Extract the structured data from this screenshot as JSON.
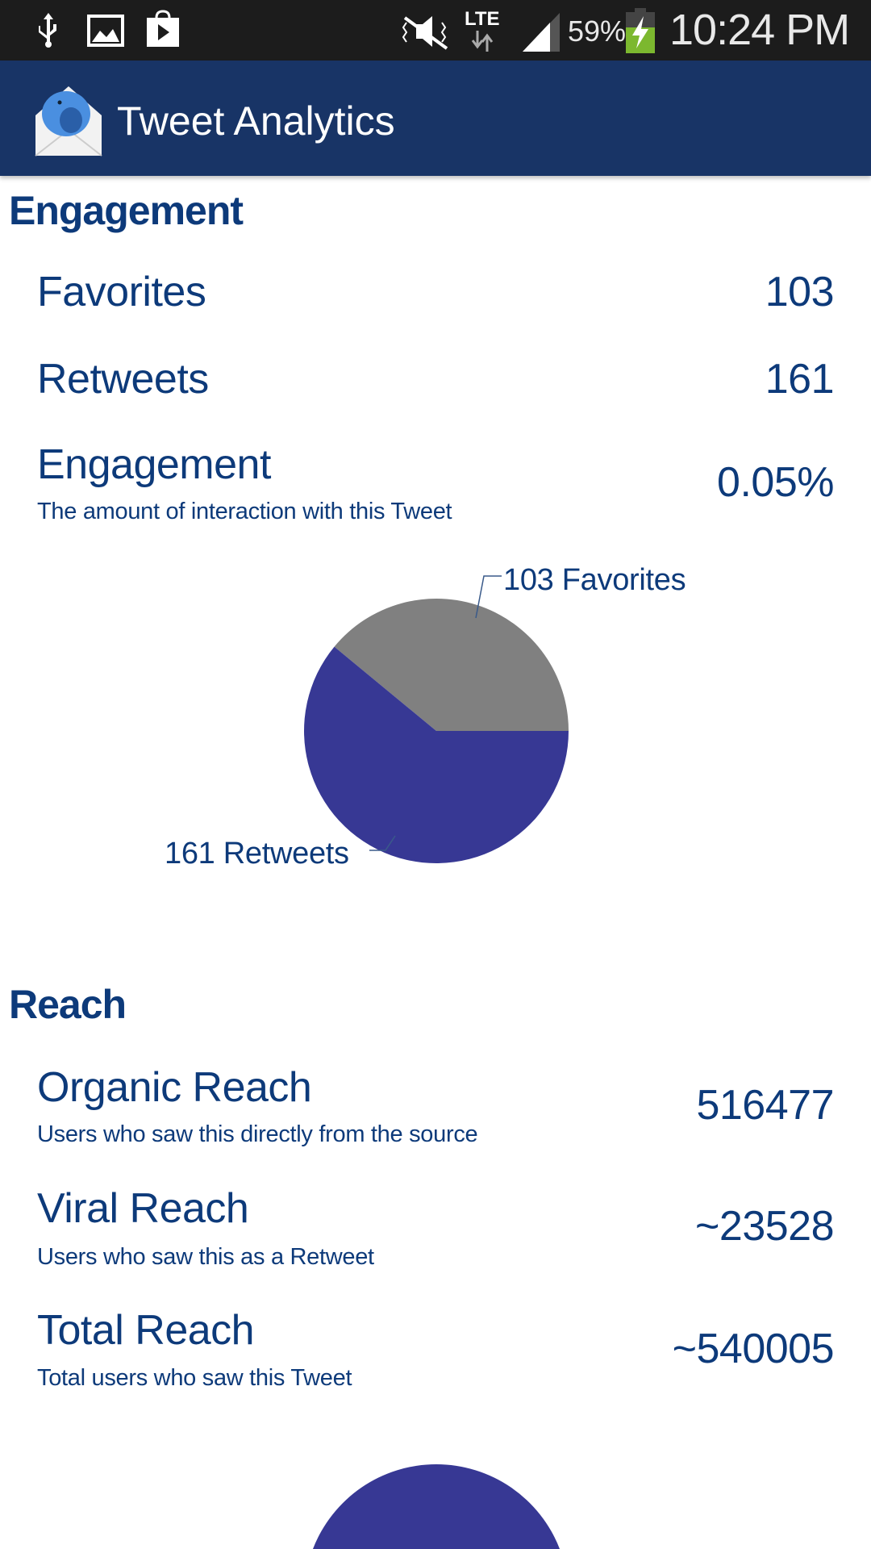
{
  "status_bar": {
    "icons_left": [
      "usb-icon",
      "image-icon",
      "play-store-icon"
    ],
    "icons_right": [
      "mute-vibrate-icon",
      "lte-icon",
      "signal-icon",
      "battery-charging-icon"
    ],
    "network": "LTE",
    "battery": "59%",
    "time": "10:24 PM"
  },
  "app_bar": {
    "title": "Tweet Analytics",
    "logo_icon": "bird-envelope-icon",
    "background": "#183466"
  },
  "engagement": {
    "heading": "Engagement",
    "rows": [
      {
        "label": "Favorites",
        "value": "103"
      },
      {
        "label": "Retweets",
        "value": "161"
      },
      {
        "label": "Engagement",
        "subtitle": "The amount of interaction with this Tweet",
        "value": "0.05%"
      }
    ]
  },
  "reach": {
    "heading": "Reach",
    "rows": [
      {
        "label": "Organic Reach",
        "subtitle": "Users who saw this directly from the source",
        "value": "516477"
      },
      {
        "label": "Viral Reach",
        "subtitle": "Users who saw this as a Retweet",
        "value": "~23528"
      },
      {
        "label": "Total Reach",
        "subtitle": "Total users who saw this Tweet",
        "value": "~540005"
      }
    ]
  },
  "colors": {
    "text": "#0d3a7a",
    "favorites_slice": "#808080",
    "retweets_slice": "#373894"
  },
  "chart_data": [
    {
      "type": "pie",
      "slices": [
        {
          "label": "103 Favorites",
          "value": 103,
          "color": "#808080"
        },
        {
          "label": "161 Retweets",
          "value": 161,
          "color": "#373894"
        }
      ]
    },
    {
      "type": "pie",
      "visible_color": "#373894"
    }
  ]
}
